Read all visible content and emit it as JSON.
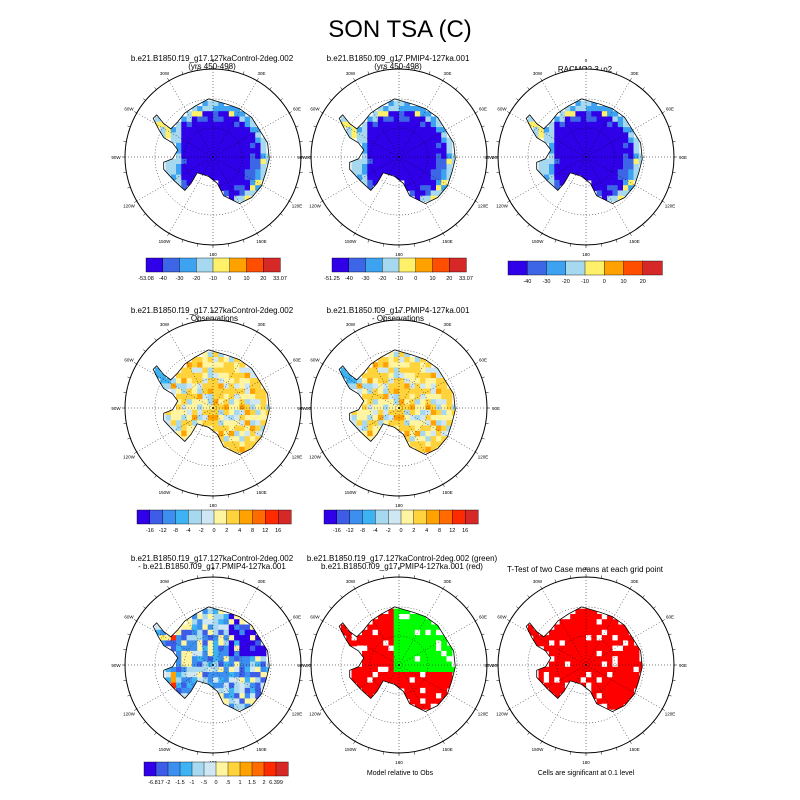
{
  "page_title": "SON TSA (C)",
  "chart_data": [
    {
      "type": "map",
      "title": "b.e21.B1850.f19_g17.127kaControl-2deg.002",
      "subtitle": "(yrs 450-498)",
      "fill": "abs",
      "colorbar_labels": [
        "-53.08",
        "-40",
        "-30",
        "-20",
        "-10",
        "0",
        "10",
        "20",
        "33.07"
      ]
    },
    {
      "type": "map",
      "title": "b.e21.B1850.f09_g17.PMIP4-127ka.001",
      "subtitle": "(yrs 450-498)",
      "fill": "abs",
      "colorbar_labels": [
        "-51.25",
        "-40",
        "-30",
        "-20",
        "-10",
        "0",
        "10",
        "20",
        "33.07"
      ]
    },
    {
      "type": "map",
      "title": "RACMO2.3_p2",
      "subtitle": "",
      "fill": "abs",
      "colorbar_labels": [
        "-40",
        "-30",
        "-20",
        "-10",
        "0",
        "10",
        "20"
      ]
    },
    {
      "type": "map",
      "title": "b.e21.B1850.f19_g17.127kaControl-2deg.002",
      "subtitle": "- Observations",
      "fill": "diff",
      "colorbar_labels": [
        "-16",
        "-12",
        "-8",
        "-4",
        "-2",
        "0",
        "2",
        "4",
        "8",
        "12",
        "16"
      ]
    },
    {
      "type": "map",
      "title": "b.e21.B1850.f09_g17.PMIP4-127ka.001",
      "subtitle": "- Observations",
      "fill": "diff",
      "colorbar_labels": [
        "-16",
        "-12",
        "-8",
        "-4",
        "-2",
        "0",
        "2",
        "4",
        "8",
        "12",
        "16"
      ]
    },
    {
      "type": "map",
      "title": "b.e21.B1850.f19_g17.127kaControl-2deg.002",
      "subtitle": "- b.e21.B1850.f09_g17.PMIP4-127ka.001",
      "fill": "mdiff",
      "colorbar_labels": [
        "-6.817",
        "-2",
        "-1.5",
        "-1",
        "-.5",
        "0",
        ".5",
        "1",
        "1.5",
        "2",
        "6.399"
      ]
    },
    {
      "type": "map",
      "title": "b.e21.B1850.f19_g17.127kaControl-2deg.002 (green)",
      "subtitle": "b.e21.B1850.f09_g17.PMIP4-127ka.001 (red)",
      "fill": "rg",
      "note": "Model relative to Obs"
    },
    {
      "type": "map",
      "title": "T-Test of two Case means at each grid point",
      "subtitle": "",
      "fill": "ttest",
      "note": "Cells are significant at 0.1 level"
    }
  ],
  "lon_labels": [
    "0",
    "30E",
    "60E",
    "90E",
    "120E",
    "150E",
    "180",
    "150W",
    "120W",
    "90W",
    "60W",
    "30W"
  ],
  "colors": {
    "abs": [
      "#2f00e8",
      "#3d66e6",
      "#3da2f0",
      "#a6d8ef",
      "#fff06a",
      "#ffa200",
      "#ff4e00",
      "#d72828"
    ],
    "diff": [
      "#2f00e8",
      "#3d5de8",
      "#3d8fef",
      "#3db3f3",
      "#a6d8ef",
      "#cfe7f3",
      "#fff4a0",
      "#ffd33c",
      "#ffa200",
      "#ff6b00",
      "#ff2b00",
      "#d72828"
    ],
    "red": "#ff0000",
    "green": "#00ff00"
  }
}
